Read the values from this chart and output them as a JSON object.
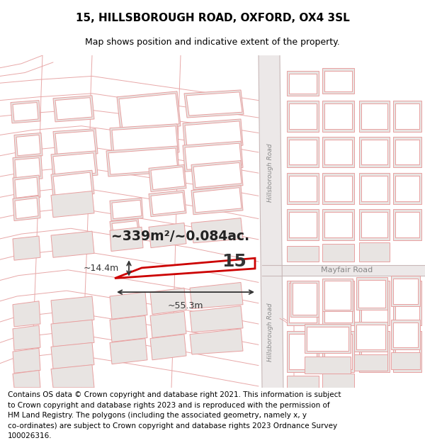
{
  "title": "15, HILLSBOROUGH ROAD, OXFORD, OX4 3SL",
  "subtitle": "Map shows position and indicative extent of the property.",
  "foot_lines": [
    "Contains OS data © Crown copyright and database right 2021. This information is subject",
    "to Crown copyright and database rights 2023 and is reproduced with the permission of",
    "HM Land Registry. The polygons (including the associated geometry, namely x, y",
    "co-ordinates) are subject to Crown copyright and database rights 2023 Ordnance Survey",
    "100026316."
  ],
  "area_label": "~339m²/~0.084ac.",
  "property_number": "15",
  "dim_width": "~55.3m",
  "dim_height": "~14.4m",
  "road_label_top": "Hillsborough Road",
  "road_label_bot": "Hillsborough Road",
  "road_label_mayfair": "Mayfair Road",
  "map_bg": "#ffffff",
  "building_fill": "#e8e4e2",
  "building_stroke": "#e8a0a0",
  "road_stroke": "#e8a0a0",
  "highlight_stroke": "#cc0000",
  "road_fill": "#f0ecec",
  "hillsborough_fill": "#e0dada",
  "title_fontsize": 11,
  "subtitle_fontsize": 9,
  "footnote_fontsize": 7.5
}
